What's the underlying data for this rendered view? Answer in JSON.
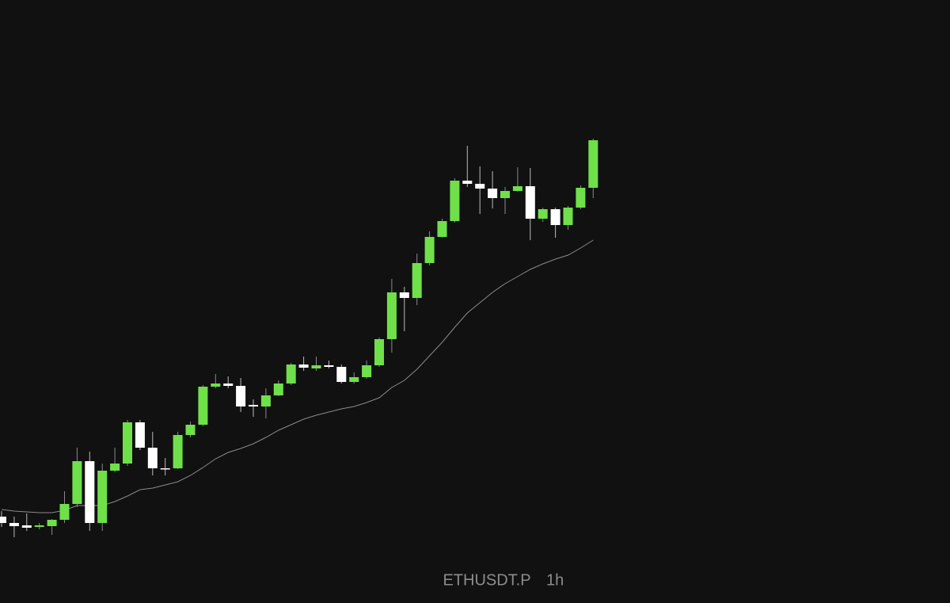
{
  "chart_data": {
    "type": "candlestick",
    "symbol": "ETHUSDT.P",
    "interval": "1h",
    "up_color": "#6fe04a",
    "down_color": "#ffffff",
    "ylim": [
      0,
      761
    ],
    "open": [
      109,
      101,
      98,
      96,
      97,
      105,
      125,
      179,
      101,
      167,
      176,
      228,
      196,
      170,
      170,
      212,
      225,
      273,
      277,
      274,
      250,
      248,
      262,
      277,
      301,
      296,
      300,
      298,
      279,
      285,
      300,
      333,
      392,
      385,
      429,
      462,
      482,
      533,
      529,
      523,
      511,
      520,
      526,
      485,
      497,
      477,
      499,
      524
    ],
    "high": [
      116,
      109,
      113,
      101,
      106,
      141,
      196,
      191,
      176,
      196,
      231,
      231,
      216,
      183,
      216,
      229,
      275,
      289,
      286,
      284,
      257,
      271,
      281,
      303,
      311,
      311,
      306,
      301,
      291,
      306,
      335,
      409,
      399,
      441,
      469,
      485,
      536,
      577,
      551,
      545,
      525,
      550,
      549,
      499,
      499,
      501,
      527,
      586
    ],
    "low": [
      96,
      83,
      91,
      93,
      86,
      101,
      121,
      91,
      91,
      165,
      173,
      193,
      161,
      161,
      169,
      209,
      223,
      271,
      271,
      241,
      235,
      233,
      261,
      275,
      293,
      293,
      296,
      277,
      277,
      283,
      298,
      316,
      343,
      376,
      426,
      461,
      480,
      525,
      491,
      498,
      491,
      519,
      458,
      481,
      461,
      471,
      497,
      511
    ],
    "close": [
      101,
      97,
      95,
      98,
      105,
      125,
      179,
      101,
      167,
      176,
      228,
      196,
      170,
      169,
      212,
      225,
      273,
      277,
      274,
      248,
      248,
      262,
      277,
      301,
      297,
      300,
      298,
      279,
      285,
      300,
      333,
      392,
      385,
      429,
      462,
      482,
      533,
      529,
      523,
      511,
      520,
      526,
      485,
      497,
      477,
      499,
      524,
      584
    ],
    "ma": {
      "color": "#8a8a8a",
      "values": [
        118,
        116,
        115,
        114,
        114,
        117,
        123,
        123,
        123,
        128,
        135,
        143,
        145,
        149,
        153,
        161,
        171,
        182,
        190,
        195,
        201,
        209,
        218,
        225,
        232,
        237,
        241,
        245,
        248,
        253,
        259,
        272,
        281,
        295,
        312,
        329,
        348,
        366,
        379,
        392,
        403,
        412,
        421,
        428,
        434,
        439,
        448,
        458
      ]
    }
  }
}
